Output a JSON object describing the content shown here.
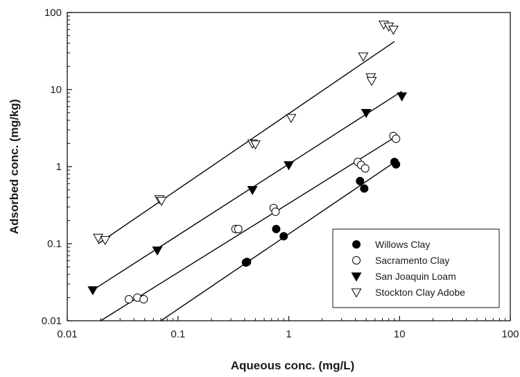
{
  "chart_data": {
    "type": "scatter",
    "title": "",
    "xlabel": "Aqueous conc. (mg/L)",
    "ylabel": "Adsorbed conc.  (mg/kg)",
    "xscale": "log",
    "yscale": "log",
    "xlim": [
      0.01,
      100
    ],
    "ylim": [
      0.01,
      100
    ],
    "xticks": [
      "0.01",
      "0.1",
      "1",
      "10",
      "100"
    ],
    "yticks": [
      "0.01",
      "0.1",
      "1",
      "10",
      "100"
    ],
    "grid": false,
    "legend_position": "bottom-right",
    "series": [
      {
        "name": "Willows Clay",
        "marker": "filled-circle",
        "points": [
          [
            0.41,
            0.057
          ],
          [
            0.42,
            0.058
          ],
          [
            0.77,
            0.155
          ],
          [
            0.9,
            0.125
          ],
          [
            4.4,
            0.65
          ],
          [
            4.8,
            0.52
          ],
          [
            9.0,
            1.15
          ],
          [
            9.3,
            1.07
          ]
        ],
        "fit_line": [
          [
            0.07,
            0.01
          ],
          [
            9.5,
            1.2
          ]
        ]
      },
      {
        "name": "Sacramento Clay",
        "marker": "open-circle",
        "points": [
          [
            0.036,
            0.019
          ],
          [
            0.043,
            0.02
          ],
          [
            0.049,
            0.019
          ],
          [
            0.33,
            0.155
          ],
          [
            0.35,
            0.155
          ],
          [
            0.73,
            0.29
          ],
          [
            0.76,
            0.26
          ],
          [
            4.2,
            1.15
          ],
          [
            4.5,
            1.05
          ],
          [
            4.9,
            0.95
          ],
          [
            8.8,
            2.5
          ],
          [
            9.3,
            2.3
          ]
        ],
        "fit_line": [
          [
            0.02,
            0.01
          ],
          [
            9.5,
            2.5
          ]
        ]
      },
      {
        "name": "San Joaquin Loam",
        "marker": "filled-triangle-down",
        "points": [
          [
            0.017,
            0.025
          ],
          [
            0.065,
            0.082
          ],
          [
            0.47,
            0.5
          ],
          [
            1.0,
            1.05
          ],
          [
            5.0,
            5.0
          ],
          [
            10.5,
            8.2
          ]
        ],
        "fit_line": [
          [
            0.017,
            0.025
          ],
          [
            10.5,
            9.5
          ]
        ]
      },
      {
        "name": "Stockton Clay Adobe",
        "marker": "open-triangle-down",
        "points": [
          [
            0.019,
            0.12
          ],
          [
            0.022,
            0.112
          ],
          [
            0.068,
            0.38
          ],
          [
            0.071,
            0.36
          ],
          [
            0.47,
            2.0
          ],
          [
            0.5,
            1.95
          ],
          [
            1.05,
            4.3
          ],
          [
            4.7,
            27
          ],
          [
            5.5,
            14.5
          ],
          [
            5.6,
            13
          ],
          [
            7.2,
            70
          ],
          [
            8.0,
            66
          ],
          [
            8.8,
            60
          ]
        ],
        "fit_line": [
          [
            0.019,
            0.1
          ],
          [
            9.0,
            42
          ]
        ]
      }
    ]
  }
}
